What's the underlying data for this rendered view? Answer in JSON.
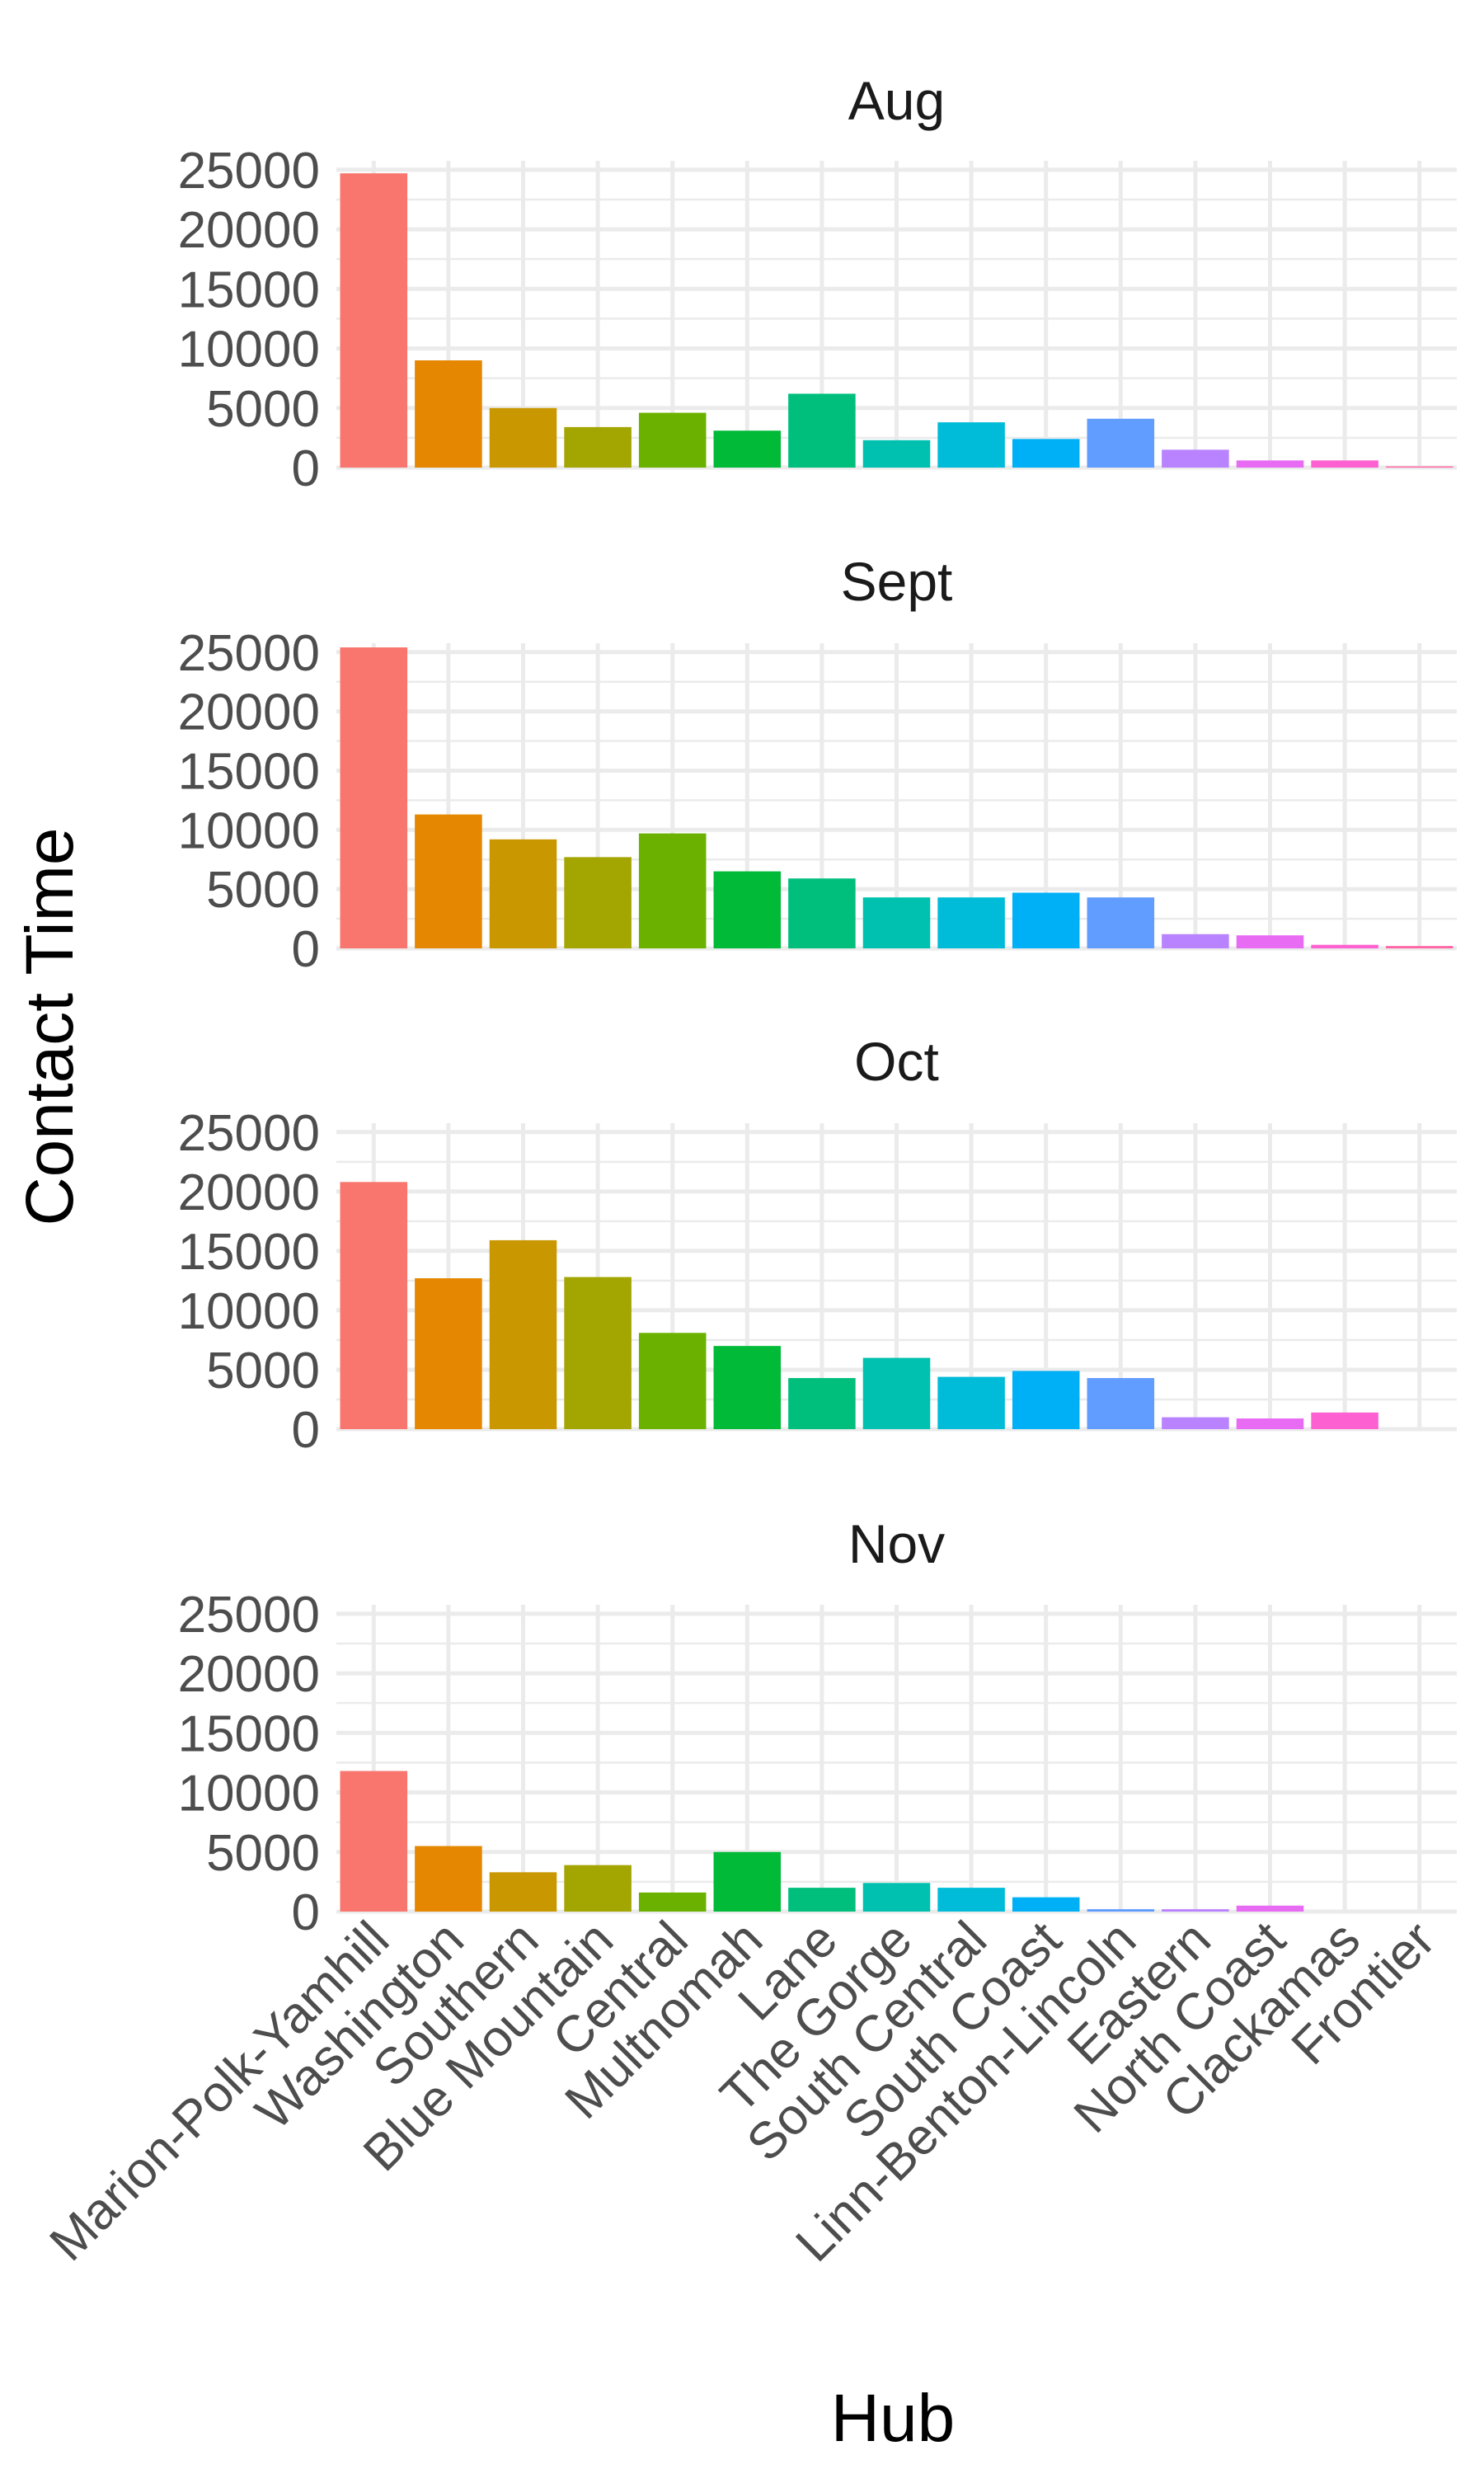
{
  "chart_data": {
    "type": "bar",
    "xlabel": "Hub",
    "ylabel": "Contact Time",
    "ylim": [
      0,
      25000
    ],
    "y_ticks": [
      0,
      5000,
      10000,
      15000,
      20000,
      25000
    ],
    "grid": true,
    "legend": "none",
    "categories": [
      "Marion-Polk-Yamhill",
      "Washington",
      "Southern",
      "Blue Mountain",
      "Central",
      "Multnomah",
      "Lane",
      "The Gorge",
      "South Central",
      "South Coast",
      "Linn-Benton-Lincoln",
      "Eastern",
      "North Coast",
      "Clackamas",
      "Frontier"
    ],
    "colors": [
      "#F8766D",
      "#E58700",
      "#C99800",
      "#A3A500",
      "#6BB100",
      "#00BA38",
      "#00BF7D",
      "#00C0AF",
      "#00BCD8",
      "#00B0F6",
      "#619CFF",
      "#B983FF",
      "#E76BF3",
      "#FD61D1",
      "#FF67A4"
    ],
    "panels": [
      {
        "name": "Aug",
        "values": [
          24700,
          9000,
          5000,
          3400,
          4600,
          3100,
          6200,
          2300,
          3800,
          2400,
          4100,
          1500,
          600,
          600,
          100
        ]
      },
      {
        "name": "Sept",
        "values": [
          25400,
          11300,
          9200,
          7700,
          9700,
          6500,
          5900,
          4300,
          4300,
          4700,
          4300,
          1200,
          1100,
          300,
          200
        ]
      },
      {
        "name": "Oct",
        "values": [
          20800,
          12700,
          15900,
          12800,
          8100,
          7000,
          4300,
          6000,
          4400,
          4900,
          4300,
          1000,
          900,
          1400,
          0
        ]
      },
      {
        "name": "Nov",
        "values": [
          11800,
          5500,
          3300,
          3900,
          1600,
          5000,
          2000,
          2400,
          2000,
          1200,
          200,
          200,
          500,
          0,
          0
        ]
      }
    ]
  }
}
